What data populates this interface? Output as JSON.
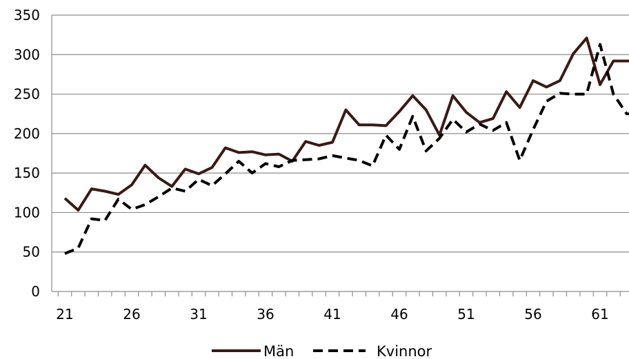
{
  "chart_data": {
    "type": "line",
    "x": [
      21,
      22,
      23,
      24,
      25,
      26,
      27,
      28,
      29,
      30,
      31,
      32,
      33,
      34,
      35,
      36,
      37,
      38,
      39,
      40,
      41,
      42,
      43,
      44,
      45,
      46,
      47,
      48,
      49,
      50,
      51,
      52,
      53,
      54,
      55,
      56,
      57,
      58,
      59,
      60,
      61,
      62,
      63,
      64
    ],
    "xticks": [
      "21",
      "26",
      "31",
      "36",
      "41",
      "46",
      "51",
      "56",
      "61"
    ],
    "yticks": [
      "0",
      "50",
      "100",
      "150",
      "200",
      "250",
      "300",
      "350"
    ],
    "ylim": [
      0,
      350
    ],
    "grid": "horizontal",
    "legend": "bottom",
    "series": [
      {
        "name": "Män",
        "color": "#3b1a14",
        "style": "solid",
        "values": [
          118,
          103,
          130,
          127,
          123,
          135,
          160,
          144,
          133,
          155,
          149,
          157,
          182,
          176,
          177,
          173,
          174,
          165,
          190,
          185,
          189,
          230,
          211,
          211,
          210,
          228,
          248,
          230,
          198,
          248,
          227,
          214,
          219,
          253,
          233,
          267,
          259,
          267,
          301,
          321,
          262,
          292,
          292,
          292
        ]
      },
      {
        "name": "Kvinnor",
        "color": "#000000",
        "style": "dashed",
        "values": [
          48,
          55,
          92,
          90,
          117,
          104,
          110,
          120,
          131,
          127,
          142,
          134,
          149,
          165,
          150,
          162,
          158,
          166,
          167,
          168,
          172,
          169,
          166,
          159,
          198,
          180,
          222,
          178,
          194,
          218,
          202,
          212,
          204,
          214,
          166,
          205,
          241,
          251,
          250,
          250,
          313,
          250,
          225,
          225
        ]
      }
    ]
  }
}
